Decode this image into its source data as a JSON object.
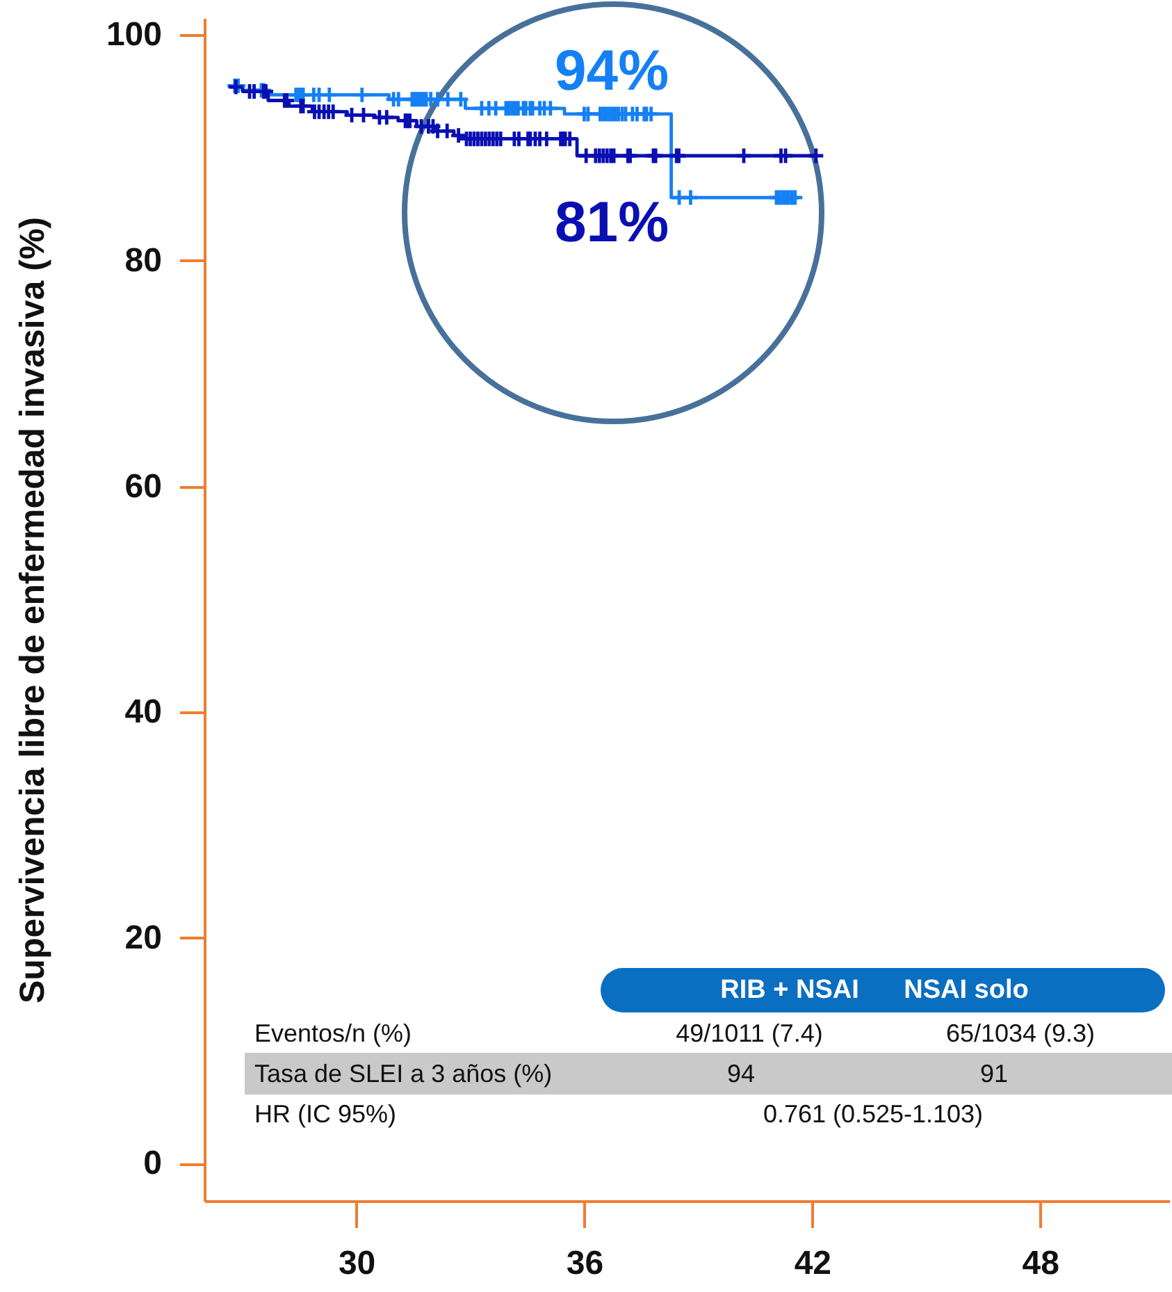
{
  "chart_data": {
    "type": "step",
    "ylabel": "Supervivencia libre de enfermedad invasiva (%)",
    "xlim": [
      26,
      51.4
    ],
    "xticks": [
      30,
      36,
      42,
      48
    ],
    "ylim": [
      -3.3,
      101.5
    ],
    "yticks": [
      0,
      20,
      40,
      60,
      80,
      100
    ],
    "series": [
      {
        "name": "94%",
        "color": "#1580f4",
        "x": [
          26.7,
          27.0,
          27.6,
          30.86,
          32.87,
          35.48,
          38.29,
          41.63
        ],
        "values": [
          95.5,
          95.1,
          94.7,
          94.3,
          93.5,
          93.0,
          85.6,
          85.6
        ]
      },
      {
        "name": "81%",
        "color": "#0a0fb2",
        "x": [
          26.7,
          27.01,
          27.68,
          28.23,
          28.84,
          29.76,
          30.49,
          31.1,
          31.59,
          32.08,
          32.57,
          32.81,
          35.81,
          42.1
        ],
        "values": [
          95.4,
          95.0,
          94.2,
          93.7,
          93.2,
          92.9,
          92.7,
          92.4,
          91.9,
          91.5,
          91.1,
          90.8,
          89.3,
          89.3
        ]
      },
      {
        "type": "scatter",
        "marker": "cross",
        "color": "#1580f4",
        "x": [
          26.8,
          26.89,
          27.5,
          27.56,
          28.41,
          28.46,
          28.51,
          28.56,
          28.6,
          28.88,
          29.02,
          29.29,
          30.15,
          30.98,
          31.11,
          31.47,
          31.53,
          31.59,
          31.65,
          31.71,
          31.78,
          31.84,
          31.96,
          32.14,
          32.41,
          32.75,
          33.3,
          33.49,
          33.67,
          33.94,
          34.02,
          34.1,
          34.18,
          34.26,
          34.4,
          34.46,
          34.58,
          34.64,
          34.83,
          34.95,
          35.11,
          36.0,
          36.1,
          36.42,
          36.5,
          36.58,
          36.66,
          36.74,
          36.82,
          36.9,
          37.0,
          37.09,
          37.27,
          37.39,
          37.58,
          37.64,
          37.76,
          38.5,
          38.8,
          41.06,
          41.14,
          41.22,
          41.3,
          41.38,
          41.47,
          41.55
        ],
        "values": [
          95.5,
          95.5,
          95.1,
          95.1,
          94.7,
          94.7,
          94.7,
          94.7,
          94.7,
          94.7,
          94.7,
          94.7,
          94.7,
          94.3,
          94.3,
          94.3,
          94.3,
          94.3,
          94.3,
          94.3,
          94.3,
          94.3,
          94.3,
          94.3,
          94.3,
          94.3,
          93.5,
          93.5,
          93.5,
          93.5,
          93.5,
          93.5,
          93.5,
          93.5,
          93.5,
          93.5,
          93.5,
          93.5,
          93.5,
          93.5,
          93.5,
          93.0,
          93.0,
          93.0,
          93.0,
          93.0,
          93.0,
          93.0,
          93.0,
          93.0,
          93.0,
          93.0,
          93.0,
          93.0,
          93.0,
          93.0,
          93.0,
          85.6,
          85.6,
          85.6,
          85.6,
          85.6,
          85.6,
          85.6,
          85.6,
          85.6
        ]
      },
      {
        "type": "scatter",
        "marker": "cross",
        "color": "#0a0fb2",
        "x": [
          26.83,
          27.19,
          27.31,
          27.56,
          27.62,
          28.11,
          28.17,
          28.54,
          28.6,
          28.9,
          29.02,
          29.15,
          29.27,
          29.39,
          29.88,
          30.19,
          30.61,
          30.8,
          31.29,
          31.35,
          31.41,
          31.71,
          31.9,
          32.02,
          32.14,
          32.39,
          32.69,
          32.9,
          33.0,
          33.1,
          33.2,
          33.3,
          33.4,
          33.5,
          33.6,
          33.7,
          33.8,
          34.16,
          34.28,
          34.52,
          34.58,
          34.71,
          34.83,
          35.01,
          35.38,
          35.44,
          35.5,
          35.62,
          36.05,
          36.3,
          36.4,
          36.5,
          36.6,
          36.7,
          36.78,
          37.15,
          37.21,
          37.82,
          37.88,
          38.43,
          38.49,
          40.2,
          41.18,
          41.3,
          42.1
        ],
        "values": [
          95.4,
          95.0,
          95.0,
          95.0,
          95.0,
          94.2,
          94.2,
          93.7,
          93.7,
          93.2,
          93.2,
          93.2,
          93.2,
          93.2,
          92.9,
          92.9,
          92.7,
          92.7,
          92.4,
          92.4,
          92.4,
          91.9,
          91.9,
          91.9,
          91.5,
          91.5,
          91.1,
          90.8,
          90.8,
          90.8,
          90.8,
          90.8,
          90.8,
          90.8,
          90.8,
          90.8,
          90.8,
          90.8,
          90.8,
          90.8,
          90.8,
          90.8,
          90.8,
          90.8,
          90.8,
          90.8,
          90.8,
          90.8,
          89.3,
          89.3,
          89.3,
          89.3,
          89.3,
          89.3,
          89.3,
          89.3,
          89.3,
          89.3,
          89.3,
          89.3,
          89.3,
          89.3,
          89.3,
          89.3,
          89.3
        ]
      }
    ],
    "annotations": [
      "RIB + NSAI",
      "NSAI solo",
      "Eventos/n (%)",
      "49/1011 (7.4)",
      "65/1034 (9.3)",
      "Tasa de SLEI a 3 años (%)",
      "94",
      "91",
      "HR (IC 95%)",
      "0.761 (0.525-1.103)"
    ]
  }
}
